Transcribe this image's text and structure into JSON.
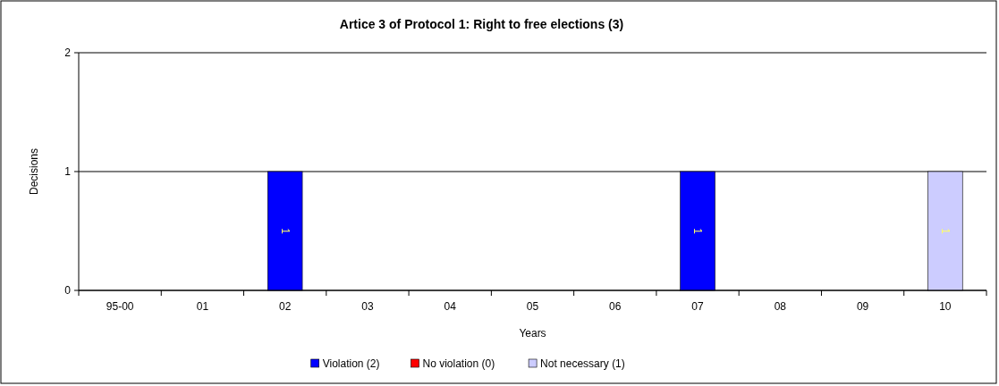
{
  "chart_data": {
    "type": "bar",
    "stacked": true,
    "title": "Artice 3 of Protocol 1: Right to free elections (3)",
    "xlabel": "Years",
    "ylabel": "Decisions",
    "categories": [
      "95-00",
      "01",
      "02",
      "03",
      "04",
      "05",
      "06",
      "07",
      "08",
      "09",
      "10"
    ],
    "series": [
      {
        "name": "Violation (2)",
        "color": "#0000ff",
        "values": [
          0,
          0,
          1,
          0,
          0,
          0,
          0,
          1,
          0,
          0,
          0
        ],
        "value_labels": [
          null,
          null,
          "1",
          null,
          null,
          null,
          null,
          "1",
          null,
          null,
          null
        ]
      },
      {
        "name": "No violation (0)",
        "color": "#ff0000",
        "values": [
          0,
          0,
          0,
          0,
          0,
          0,
          0,
          0,
          0,
          0,
          0
        ],
        "value_labels": [
          null,
          null,
          null,
          null,
          null,
          null,
          null,
          null,
          null,
          null,
          null
        ]
      },
      {
        "name": "Not necessary (1)",
        "color": "#ccccff",
        "values": [
          0,
          0,
          0,
          0,
          0,
          0,
          0,
          0,
          0,
          0,
          1
        ],
        "value_labels": [
          null,
          null,
          null,
          null,
          null,
          null,
          null,
          null,
          null,
          null,
          "1"
        ]
      }
    ],
    "ylim": [
      0,
      2
    ],
    "yticks": [
      0,
      1,
      2
    ],
    "grid": "y",
    "legend": "bottom"
  }
}
